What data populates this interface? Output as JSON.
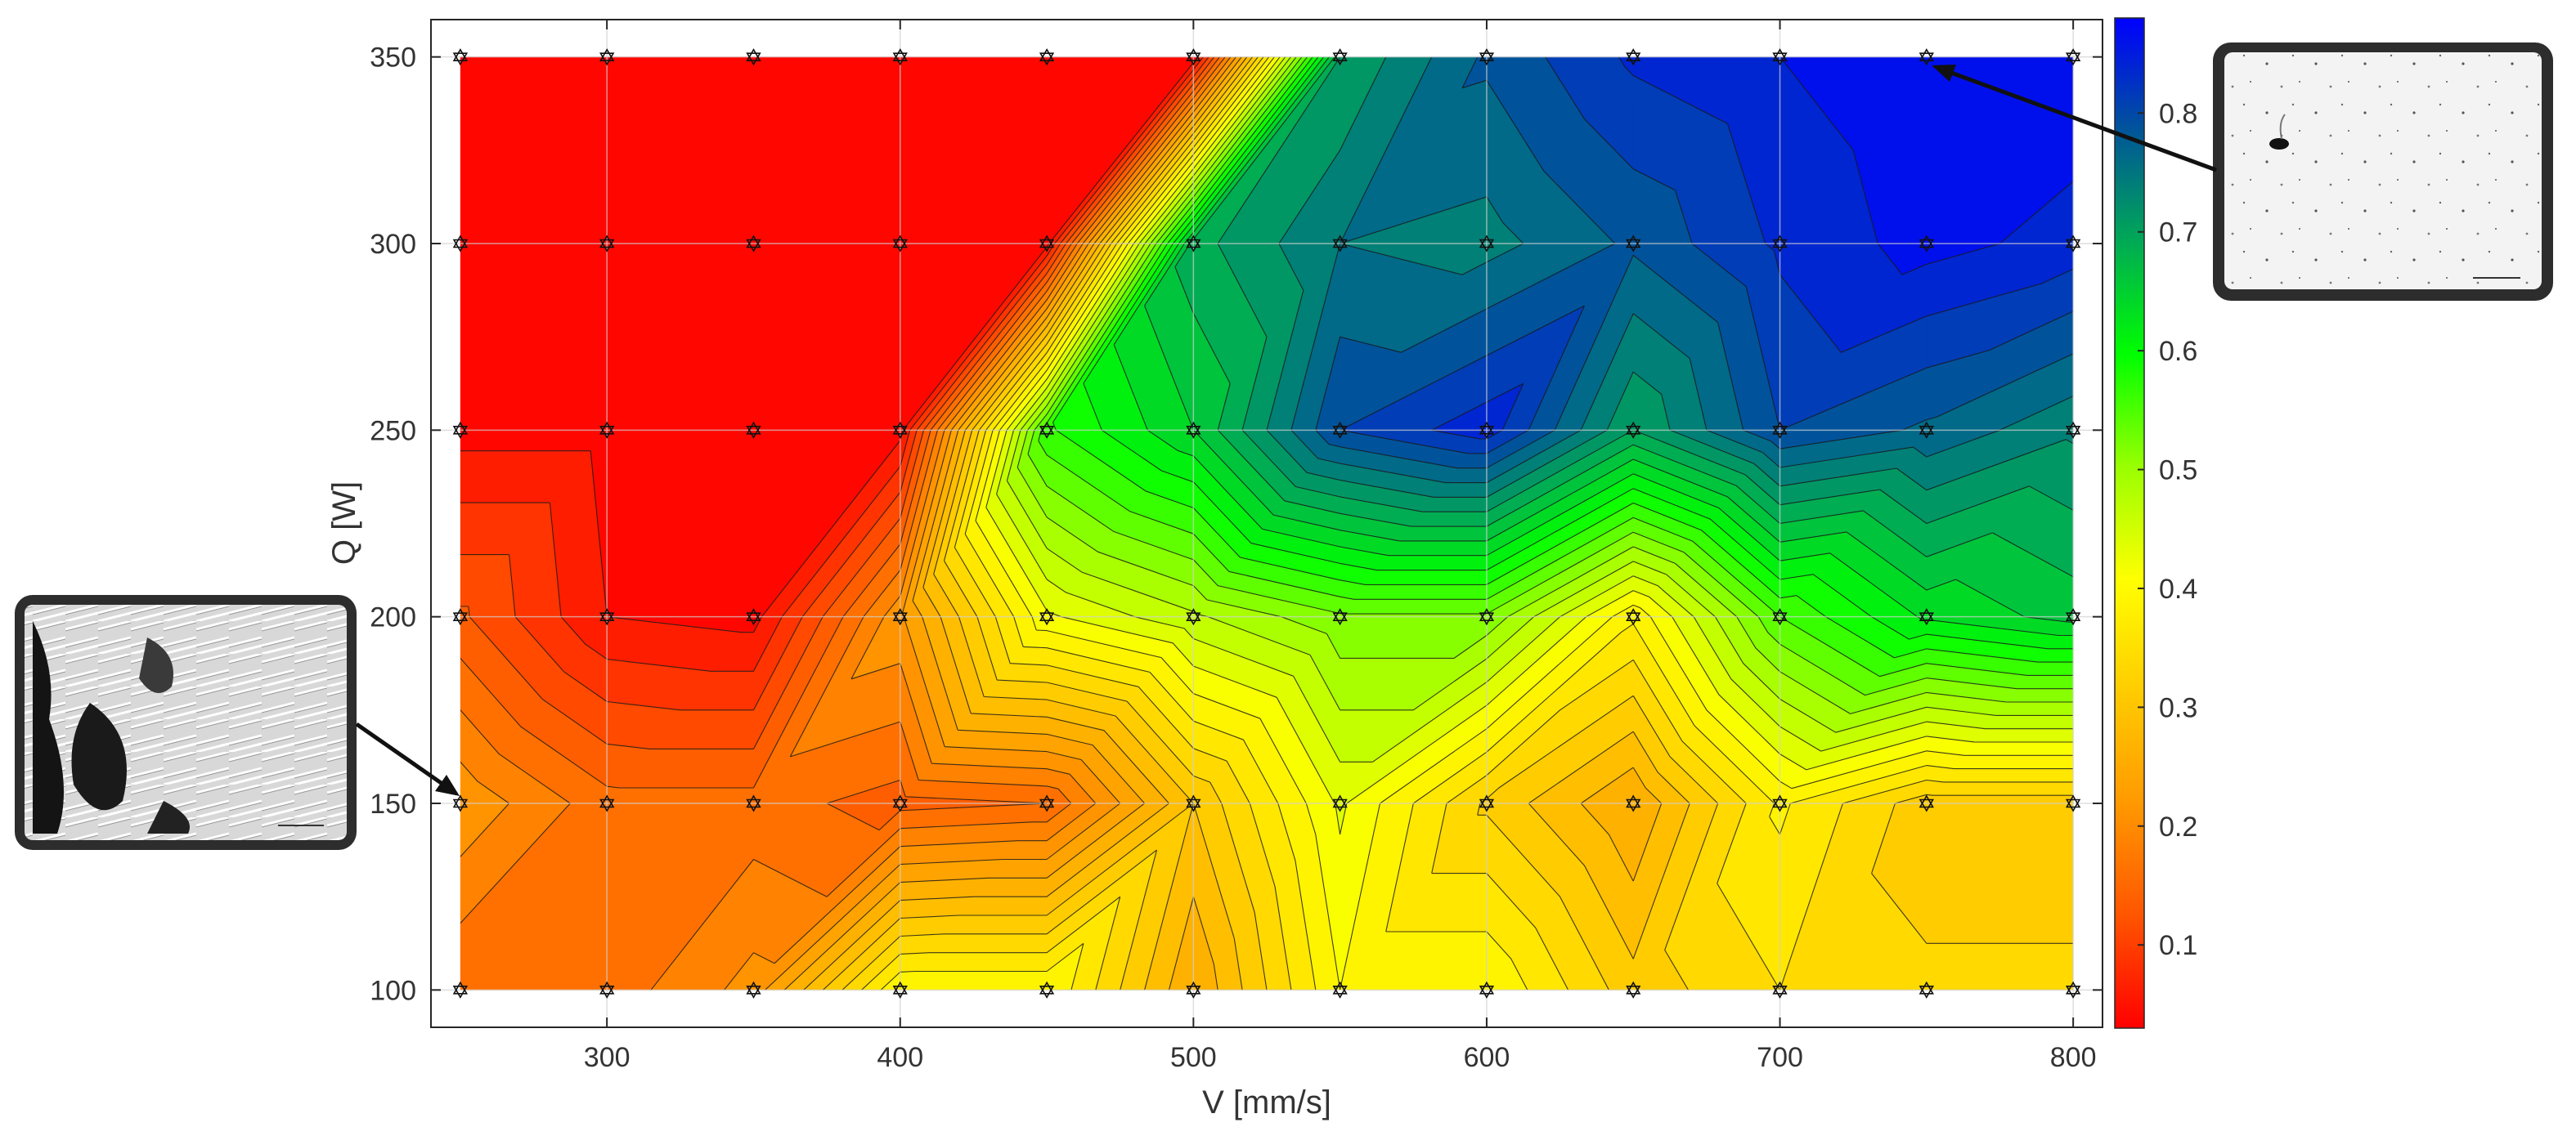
{
  "chart_data": {
    "type": "heatmap",
    "subtype": "filled-contour",
    "xlabel": "V [mm/s]",
    "ylabel": "Q [W]",
    "x": [
      250,
      300,
      350,
      400,
      450,
      500,
      550,
      600,
      650,
      700,
      750,
      800
    ],
    "y": [
      100,
      150,
      200,
      250,
      300,
      350
    ],
    "xticks": [
      "300",
      "400",
      "500",
      "600",
      "700",
      "800"
    ],
    "yticks": [
      "100",
      "150",
      "200",
      "250",
      "300",
      "350"
    ],
    "xlim": [
      240,
      810
    ],
    "ylim": [
      90,
      360
    ],
    "z": [
      [
        0.15,
        0.16,
        0.21,
        0.4,
        0.4,
        0.25,
        0.4,
        0.4,
        0.31,
        0.35,
        0.33,
        0.33
      ],
      [
        0.22,
        0.16,
        0.16,
        0.14,
        0.15,
        0.3,
        0.43,
        0.32,
        0.25,
        0.38,
        0.31,
        0.31
      ],
      [
        0.13,
        0.05,
        0.04,
        0.22,
        0.42,
        0.47,
        0.52,
        0.52,
        0.38,
        0.55,
        0.63,
        0.66
      ],
      [
        0.04,
        0.04,
        0.04,
        0.04,
        0.57,
        0.65,
        0.8,
        0.84,
        0.7,
        0.8,
        0.77,
        0.73
      ],
      [
        0.04,
        0.04,
        0.04,
        0.04,
        0.04,
        0.69,
        0.75,
        0.74,
        0.78,
        0.83,
        0.86,
        0.84
      ],
      [
        0.04,
        0.04,
        0.04,
        0.04,
        0.04,
        0.03,
        0.7,
        0.78,
        0.83,
        0.85,
        0.87,
        0.87
      ]
    ],
    "markers": "hexagram at every (x, y) grid node",
    "contour_step": 0.025,
    "colorbar": {
      "ticks": [
        "0.1",
        "0.2",
        "0.3",
        "0.4",
        "0.5",
        "0.6",
        "0.7",
        "0.8"
      ],
      "range": [
        0.03,
        0.88
      ],
      "colormap": [
        "#ff0000",
        "#ff5500",
        "#ff9900",
        "#ffcc00",
        "#ffff00",
        "#99ff00",
        "#00ff00",
        "#00aa55",
        "#005599",
        "#0000ff"
      ]
    },
    "grid": true,
    "annotations": [
      {
        "target": [
          750,
          350
        ],
        "image": "micrograph-porosity-free",
        "placement": "top-right"
      },
      {
        "target": [
          250,
          150
        ],
        "image": "micrograph-porous",
        "placement": "left"
      }
    ]
  }
}
